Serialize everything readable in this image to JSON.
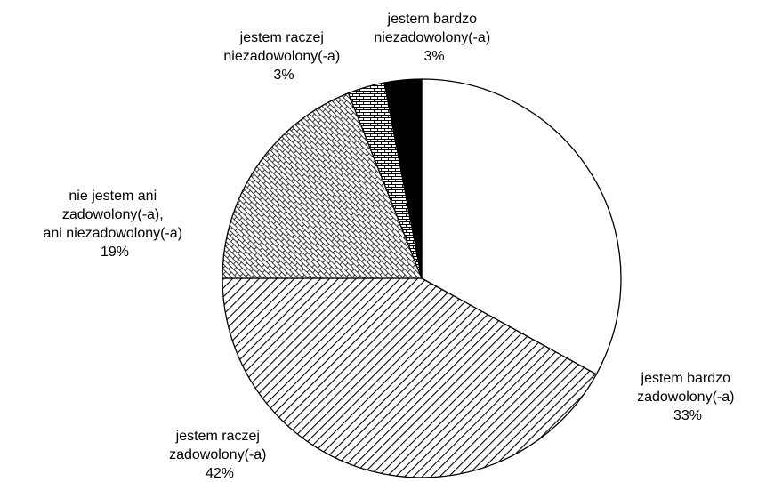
{
  "chart_data": {
    "type": "pie",
    "title": "",
    "start": "12 o'clock",
    "direction": "clockwise",
    "legend": "none",
    "slices": [
      {
        "label_lines": [
          "jestem bardzo",
          "zadowolony(-a)"
        ],
        "value": 33,
        "value_label": "33%",
        "pattern": "solid white"
      },
      {
        "label_lines": [
          "jestem raczej",
          "zadowolony(-a)"
        ],
        "value": 42,
        "value_label": "42%",
        "pattern": "diagonal hatch"
      },
      {
        "label_lines": [
          "nie jestem ani",
          "zadowolony(-a),",
          "ani niezadowolony(-a)"
        ],
        "value": 19,
        "value_label": "19%",
        "pattern": "diagonal brick"
      },
      {
        "label_lines": [
          "jestem raczej",
          "niezadowolony(-a)"
        ],
        "value": 3,
        "value_label": "3%",
        "pattern": "horizontal brick"
      },
      {
        "label_lines": [
          "jestem bardzo",
          "niezadowolony(-a)"
        ],
        "value": 3,
        "value_label": "3%",
        "pattern": "solid black"
      }
    ]
  }
}
